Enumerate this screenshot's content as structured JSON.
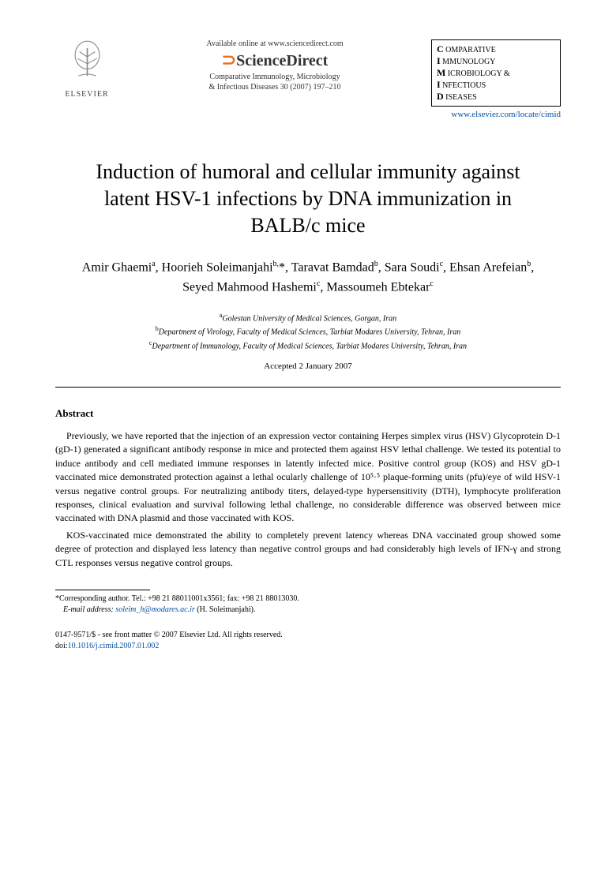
{
  "header": {
    "publisher_name": "ELSEVIER",
    "available_text": "Available online at www.sciencedirect.com",
    "sd_brand": "ScienceDirect",
    "journal_citation_line1": "Comparative Immunology, Microbiology",
    "journal_citation_line2": "& Infectious Diseases 30 (2007) 197–210",
    "journal_box_lines": [
      {
        "cap": "C",
        "rest": " OMPARATIVE"
      },
      {
        "cap": "I",
        "rest": " MMUNOLOGY"
      },
      {
        "cap": "M",
        "rest": " ICROBIOLOGY &"
      },
      {
        "cap": "I",
        "rest": " NFECTIOUS"
      },
      {
        "cap": "D",
        "rest": " ISEASES"
      }
    ],
    "journal_url": "www.elsevier.com/locate/cimid"
  },
  "article": {
    "title": "Induction of humoral and cellular immunity against latent HSV-1 infections by DNA immunization in BALB/c mice",
    "authors_html": "Amir Ghaemi<sup>a</sup>, Hoorieh Soleimanjahi<sup>b,</sup>*, Taravat Bamdad<sup>b</sup>, Sara Soudi<sup>c</sup>, Ehsan Arefeian<sup>b</sup>, Seyed Mahmood Hashemi<sup>c</sup>, Massoumeh Ebtekar<sup>c</sup>",
    "affiliations": [
      "Golestan University of Medical Sciences, Gorgan, Iran",
      "Department of Virology, Faculty of Medical Sciences, Tarbiat Modares University, Tehran, Iran",
      "Department of Immunology, Faculty of Medical Sciences, Tarbiat Modares University, Tehran, Iran"
    ],
    "aff_markers": [
      "a",
      "b",
      "c"
    ],
    "accepted": "Accepted 2 January 2007"
  },
  "abstract": {
    "heading": "Abstract",
    "para1": "Previously, we have reported that the injection of an expression vector containing Herpes simplex virus (HSV) Glycoprotein D-1 (gD-1) generated a significant antibody response in mice and protected them against HSV lethal challenge. We tested its potential to induce antibody and cell mediated immune responses in latently infected mice. Positive control group (KOS) and HSV gD-1 vaccinated mice demonstrated protection against a lethal ocularly challenge of 10⁵·⁵ plaque-forming units (pfu)/eye of wild HSV-1 versus negative control groups. For neutralizing antibody titers, delayed-type hypersensitivity (DTH), lymphocyte proliferation responses, clinical evaluation and survival following lethal challenge, no considerable difference was observed between mice vaccinated with DNA plasmid and those vaccinated with KOS.",
    "para2": "KOS-vaccinated mice demonstrated the ability to completely prevent latency whereas DNA vaccinated group showed some degree of protection and displayed less latency than negative control groups and had considerably high levels of IFN-γ and strong CTL responses versus negative control groups."
  },
  "footnote": {
    "corresponding": "*Corresponding author. Tel.: +98 21 88011001x3561; fax: +98 21 88013030.",
    "email_label": "E-mail address:",
    "email": "soleim_h@modares.ac.ir",
    "email_name": "(H. Soleimanjahi)."
  },
  "bottom": {
    "issn_line": "0147-9571/$ - see front matter © 2007 Elsevier Ltd. All rights reserved.",
    "doi_label": "doi:",
    "doi": "10.1016/j.cimid.2007.01.002"
  }
}
